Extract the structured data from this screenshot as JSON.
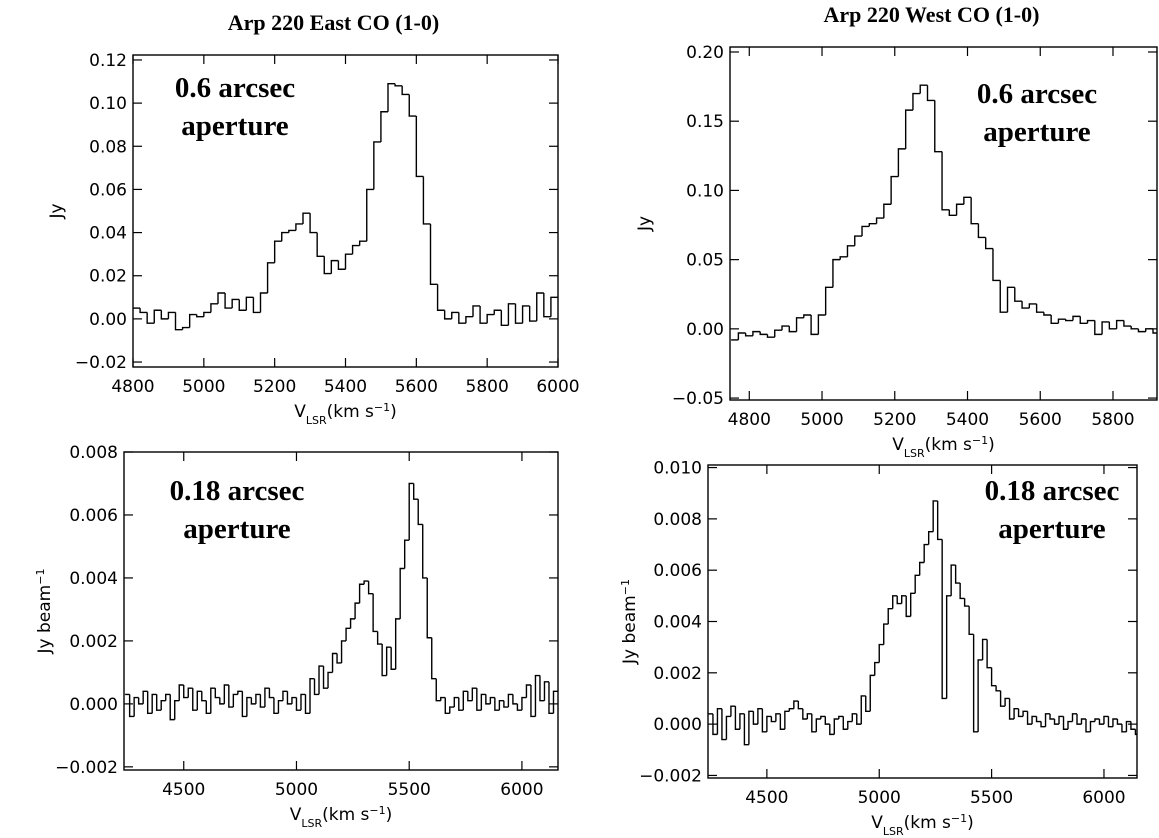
{
  "chart_data": [
    {
      "type": "step",
      "title": "Arp 220 East  CO (1-0)",
      "annotation": [
        "0.6 arcsec",
        "aperture"
      ],
      "xlabel": [
        {
          "text": "V"
        },
        {
          "text": "LSR",
          "script": "sub"
        },
        {
          "text": "(km  s"
        },
        {
          "text": "−1",
          "script": "sup"
        },
        {
          "text": ")"
        }
      ],
      "ylabel": [
        {
          "text": "Jy"
        }
      ],
      "xlim": [
        4800,
        6000
      ],
      "ylim": [
        -0.0223,
        0.1223
      ],
      "xticks": [
        4800,
        5000,
        5200,
        5400,
        5600,
        5800,
        6000
      ],
      "yticks": [
        {
          "value": -0.02,
          "label": "−0.02"
        },
        {
          "value": 0,
          "label": "0.00"
        },
        0.02,
        0.04,
        0.06,
        0.08,
        {
          "value": 0.1,
          "label": "0.10"
        },
        0.12
      ],
      "color": "#000000",
      "x": [
        4800,
        4820,
        4840,
        4860,
        4880,
        4900,
        4920,
        4940,
        4960,
        4980,
        5000,
        5020,
        5040,
        5060,
        5080,
        5100,
        5120,
        5140,
        5160,
        5180,
        5200,
        5220,
        5240,
        5260,
        5280,
        5300,
        5320,
        5340,
        5360,
        5380,
        5400,
        5420,
        5440,
        5460,
        5480,
        5500,
        5520,
        5540,
        5560,
        5580,
        5600,
        5620,
        5640,
        5660,
        5680,
        5700,
        5720,
        5740,
        5760,
        5780,
        5800,
        5820,
        5840,
        5860,
        5880,
        5900,
        5920,
        5940,
        5960,
        5980
      ],
      "values": [
        0.005,
        0.003,
        -0.002,
        0.004,
        0.0,
        0.003,
        -0.005,
        -0.004,
        0.002,
        0.001,
        0.003,
        0.007,
        0.012,
        0.005,
        0.009,
        0.004,
        0.01,
        0.003,
        0.012,
        0.026,
        0.036,
        0.04,
        0.041,
        0.044,
        0.049,
        0.04,
        0.029,
        0.021,
        0.027,
        0.023,
        0.03,
        0.034,
        0.036,
        0.06,
        0.082,
        0.096,
        0.109,
        0.108,
        0.104,
        0.094,
        0.066,
        0.044,
        0.016,
        0.004,
        0.0,
        0.003,
        -0.002,
        0.001,
        0.006,
        -0.002,
        0.002,
        0.004,
        -0.003,
        0.007,
        -0.002,
        0.006,
        -0.001,
        0.012,
        0.001,
        0.01
      ]
    },
    {
      "type": "step",
      "title": "Arp 220 West  CO (1-0)",
      "annotation": [
        "0.6 arcsec",
        "aperture"
      ],
      "xlabel": [
        {
          "text": "V"
        },
        {
          "text": "LSR",
          "script": "sub"
        },
        {
          "text": "(km  s"
        },
        {
          "text": "−1",
          "script": "sup"
        },
        {
          "text": ")"
        }
      ],
      "ylabel": [
        {
          "text": "Jy"
        }
      ],
      "xlim": [
        4747,
        5921
      ],
      "ylim": [
        -0.0514,
        0.2036
      ],
      "xticks": [
        4800,
        5000,
        5200,
        5400,
        5600,
        5800
      ],
      "yticks": [
        {
          "value": -0.05,
          "label": "−0.05"
        },
        {
          "value": 0,
          "label": "0.00"
        },
        0.05,
        {
          "value": 0.1,
          "label": "0.10"
        },
        0.15,
        {
          "value": 0.2,
          "label": "0.20"
        }
      ],
      "color": "#000000",
      "x": [
        4750,
        4770,
        4790,
        4810,
        4830,
        4850,
        4870,
        4890,
        4910,
        4930,
        4950,
        4970,
        4990,
        5010,
        5030,
        5050,
        5070,
        5090,
        5110,
        5130,
        5150,
        5170,
        5190,
        5210,
        5230,
        5250,
        5270,
        5290,
        5310,
        5330,
        5350,
        5370,
        5390,
        5410,
        5430,
        5450,
        5470,
        5490,
        5510,
        5530,
        5550,
        5570,
        5590,
        5610,
        5630,
        5650,
        5670,
        5690,
        5710,
        5730,
        5750,
        5770,
        5790,
        5810,
        5830,
        5850,
        5870,
        5890,
        5910
      ],
      "values": [
        -0.008,
        -0.003,
        -0.005,
        -0.002,
        -0.004,
        -0.006,
        -0.001,
        0.002,
        -0.002,
        0.008,
        0.01,
        -0.004,
        0.01,
        0.03,
        0.05,
        0.052,
        0.06,
        0.067,
        0.074,
        0.076,
        0.08,
        0.09,
        0.11,
        0.13,
        0.158,
        0.17,
        0.176,
        0.165,
        0.128,
        0.086,
        0.082,
        0.09,
        0.095,
        0.076,
        0.066,
        0.058,
        0.035,
        0.012,
        0.03,
        0.02,
        0.015,
        0.018,
        0.012,
        0.01,
        0.004,
        0.007,
        0.006,
        0.009,
        0.004,
        0.006,
        -0.004,
        0.005,
        0.0,
        0.006,
        0.002,
        0.0,
        -0.002,
        0.0,
        -0.003
      ]
    },
    {
      "type": "step",
      "annotation": [
        "0.18 arcsec",
        "aperture"
      ],
      "xlabel": [
        {
          "text": "V"
        },
        {
          "text": "LSR",
          "script": "sub"
        },
        {
          "text": "(km  s"
        },
        {
          "text": "−1",
          "script": "sup"
        },
        {
          "text": ")"
        }
      ],
      "ylabel": [
        {
          "text": "Jy beam"
        },
        {
          "text": "−1",
          "script": "sup"
        }
      ],
      "xlim": [
        4235,
        6160
      ],
      "ylim": [
        -0.0021,
        0.008
      ],
      "xticks": [
        4500,
        5000,
        5500,
        6000
      ],
      "yticks": [
        {
          "value": -0.002,
          "label": "−0.002"
        },
        {
          "value": 0,
          "label": "0.000"
        },
        0.002,
        0.004,
        0.006,
        0.008
      ],
      "color": "#000000",
      "x": [
        4240,
        4260,
        4280,
        4300,
        4320,
        4340,
        4360,
        4380,
        4400,
        4420,
        4440,
        4460,
        4480,
        4500,
        4520,
        4540,
        4560,
        4580,
        4600,
        4620,
        4640,
        4660,
        4680,
        4700,
        4720,
        4740,
        4760,
        4780,
        4800,
        4820,
        4840,
        4860,
        4880,
        4900,
        4920,
        4940,
        4960,
        4980,
        5000,
        5020,
        5040,
        5060,
        5080,
        5100,
        5120,
        5140,
        5160,
        5180,
        5200,
        5220,
        5240,
        5260,
        5280,
        5300,
        5320,
        5340,
        5360,
        5380,
        5400,
        5420,
        5440,
        5460,
        5480,
        5500,
        5520,
        5540,
        5560,
        5580,
        5600,
        5620,
        5640,
        5660,
        5680,
        5700,
        5720,
        5740,
        5760,
        5780,
        5800,
        5820,
        5840,
        5860,
        5880,
        5900,
        5920,
        5940,
        5960,
        5980,
        6000,
        6020,
        6040,
        6060,
        6080,
        6100,
        6120,
        6140
      ],
      "values": [
        0.0003,
        -0.0004,
        0.0002,
        0.0,
        0.0004,
        -0.0003,
        0.0003,
        -0.0002,
        0.0001,
        0.0003,
        -0.0005,
        0.0001,
        0.0006,
        0.0002,
        0.0005,
        -0.0002,
        0.0004,
        0.0001,
        -0.0003,
        0.0005,
        0.0002,
        0.0,
        0.0006,
        -0.0001,
        0.0003,
        0.0004,
        -0.0004,
        0.0002,
        0.0,
        0.0003,
        -0.0001,
        0.0005,
        0.0002,
        -0.0003,
        0.0001,
        0.0004,
        0.0,
        0.0002,
        -0.0002,
        0.0003,
        -0.0003,
        0.0008,
        0.0003,
        0.0012,
        0.0005,
        0.001,
        0.0016,
        0.0013,
        0.002,
        0.0024,
        0.0027,
        0.0032,
        0.0038,
        0.0039,
        0.0035,
        0.0023,
        0.0019,
        0.0009,
        0.0018,
        0.0011,
        0.0027,
        0.0043,
        0.0052,
        0.007,
        0.0065,
        0.0057,
        0.004,
        0.0021,
        0.0008,
        0.0001,
        0.0002,
        -0.0003,
        -0.0001,
        0.0002,
        -0.0002,
        0.0004,
        0.0001,
        0.0005,
        -0.0002,
        0.0003,
        0.0,
        0.0002,
        -0.0002,
        0.0001,
        -0.0001,
        0.0003,
        0.0,
        -0.0002,
        0.0002,
        0.0006,
        -0.0004,
        0.0009,
        0.0001,
        0.0007,
        -0.0003,
        0.0004
      ]
    },
    {
      "type": "step",
      "annotation": [
        "0.18 arcsec",
        "aperture"
      ],
      "xlabel": [
        {
          "text": "V"
        },
        {
          "text": "LSR",
          "script": "sub"
        },
        {
          "text": "(km  s"
        },
        {
          "text": "−1",
          "script": "sup"
        },
        {
          "text": ")"
        }
      ],
      "ylabel": [
        {
          "text": "Jy beam"
        },
        {
          "text": "−1",
          "script": "sup"
        }
      ],
      "xlim": [
        4238,
        6147
      ],
      "ylim": [
        -0.0021,
        0.0101
      ],
      "xticks": [
        4500,
        5000,
        5500,
        6000
      ],
      "yticks": [
        {
          "value": -0.002,
          "label": "−0.002"
        },
        {
          "value": 0,
          "label": "0.000"
        },
        0.002,
        0.004,
        0.006,
        0.008,
        {
          "value": 0.01,
          "label": "0.010"
        }
      ],
      "color": "#000000",
      "x": [
        4240,
        4260,
        4280,
        4300,
        4320,
        4340,
        4360,
        4380,
        4400,
        4420,
        4440,
        4460,
        4480,
        4500,
        4520,
        4540,
        4560,
        4580,
        4600,
        4620,
        4640,
        4660,
        4680,
        4700,
        4720,
        4740,
        4760,
        4780,
        4800,
        4820,
        4840,
        4860,
        4880,
        4900,
        4920,
        4940,
        4960,
        4980,
        5000,
        5020,
        5040,
        5060,
        5080,
        5100,
        5120,
        5140,
        5160,
        5180,
        5200,
        5220,
        5240,
        5260,
        5280,
        5300,
        5320,
        5340,
        5360,
        5380,
        5400,
        5420,
        5440,
        5460,
        5480,
        5500,
        5520,
        5540,
        5560,
        5580,
        5600,
        5620,
        5640,
        5660,
        5680,
        5700,
        5720,
        5740,
        5760,
        5780,
        5800,
        5820,
        5840,
        5860,
        5880,
        5900,
        5920,
        5940,
        5960,
        5980,
        6000,
        6020,
        6040,
        6060,
        6080,
        6100,
        6120,
        6140
      ],
      "values": [
        0.0004,
        -0.0004,
        0.0006,
        -0.0006,
        0.0003,
        0.0007,
        -0.0002,
        0.0004,
        -0.0008,
        0.0005,
        0.0,
        0.0006,
        -0.0003,
        0.0003,
        0.0001,
        0.0004,
        -0.0002,
        0.0005,
        0.0006,
        0.0009,
        0.0006,
        0.0002,
        0.0004,
        -0.0003,
        0.0002,
        0.0003,
        0.0,
        -0.0004,
        0.0002,
        0.0003,
        -0.0002,
        0.0001,
        0.0004,
        0.0,
        0.0011,
        0.0005,
        0.0019,
        0.0024,
        0.0031,
        0.0039,
        0.0045,
        0.005,
        0.0047,
        0.005,
        0.0042,
        0.0051,
        0.0058,
        0.0063,
        0.007,
        0.0075,
        0.0087,
        0.0072,
        0.001,
        0.005,
        0.0062,
        0.0055,
        0.0049,
        0.0046,
        0.0035,
        -0.0003,
        0.0025,
        0.0033,
        0.0022,
        0.0015,
        0.0013,
        0.0007,
        0.001,
        0.0002,
        0.0006,
        0.0003,
        0.0005,
        0.0,
        0.0003,
        0.0001,
        -0.0001,
        0.0004,
        0.0002,
        0.0,
        0.0003,
        -0.0002,
        0.0001,
        0.0004,
        0.0,
        0.0002,
        -0.0003,
        0.0001,
        0.0002,
        0.0,
        0.0003,
        -0.0001,
        0.0002,
        0.0,
        -0.0003,
        0.0001,
        -0.0002,
        -0.0004
      ]
    }
  ]
}
